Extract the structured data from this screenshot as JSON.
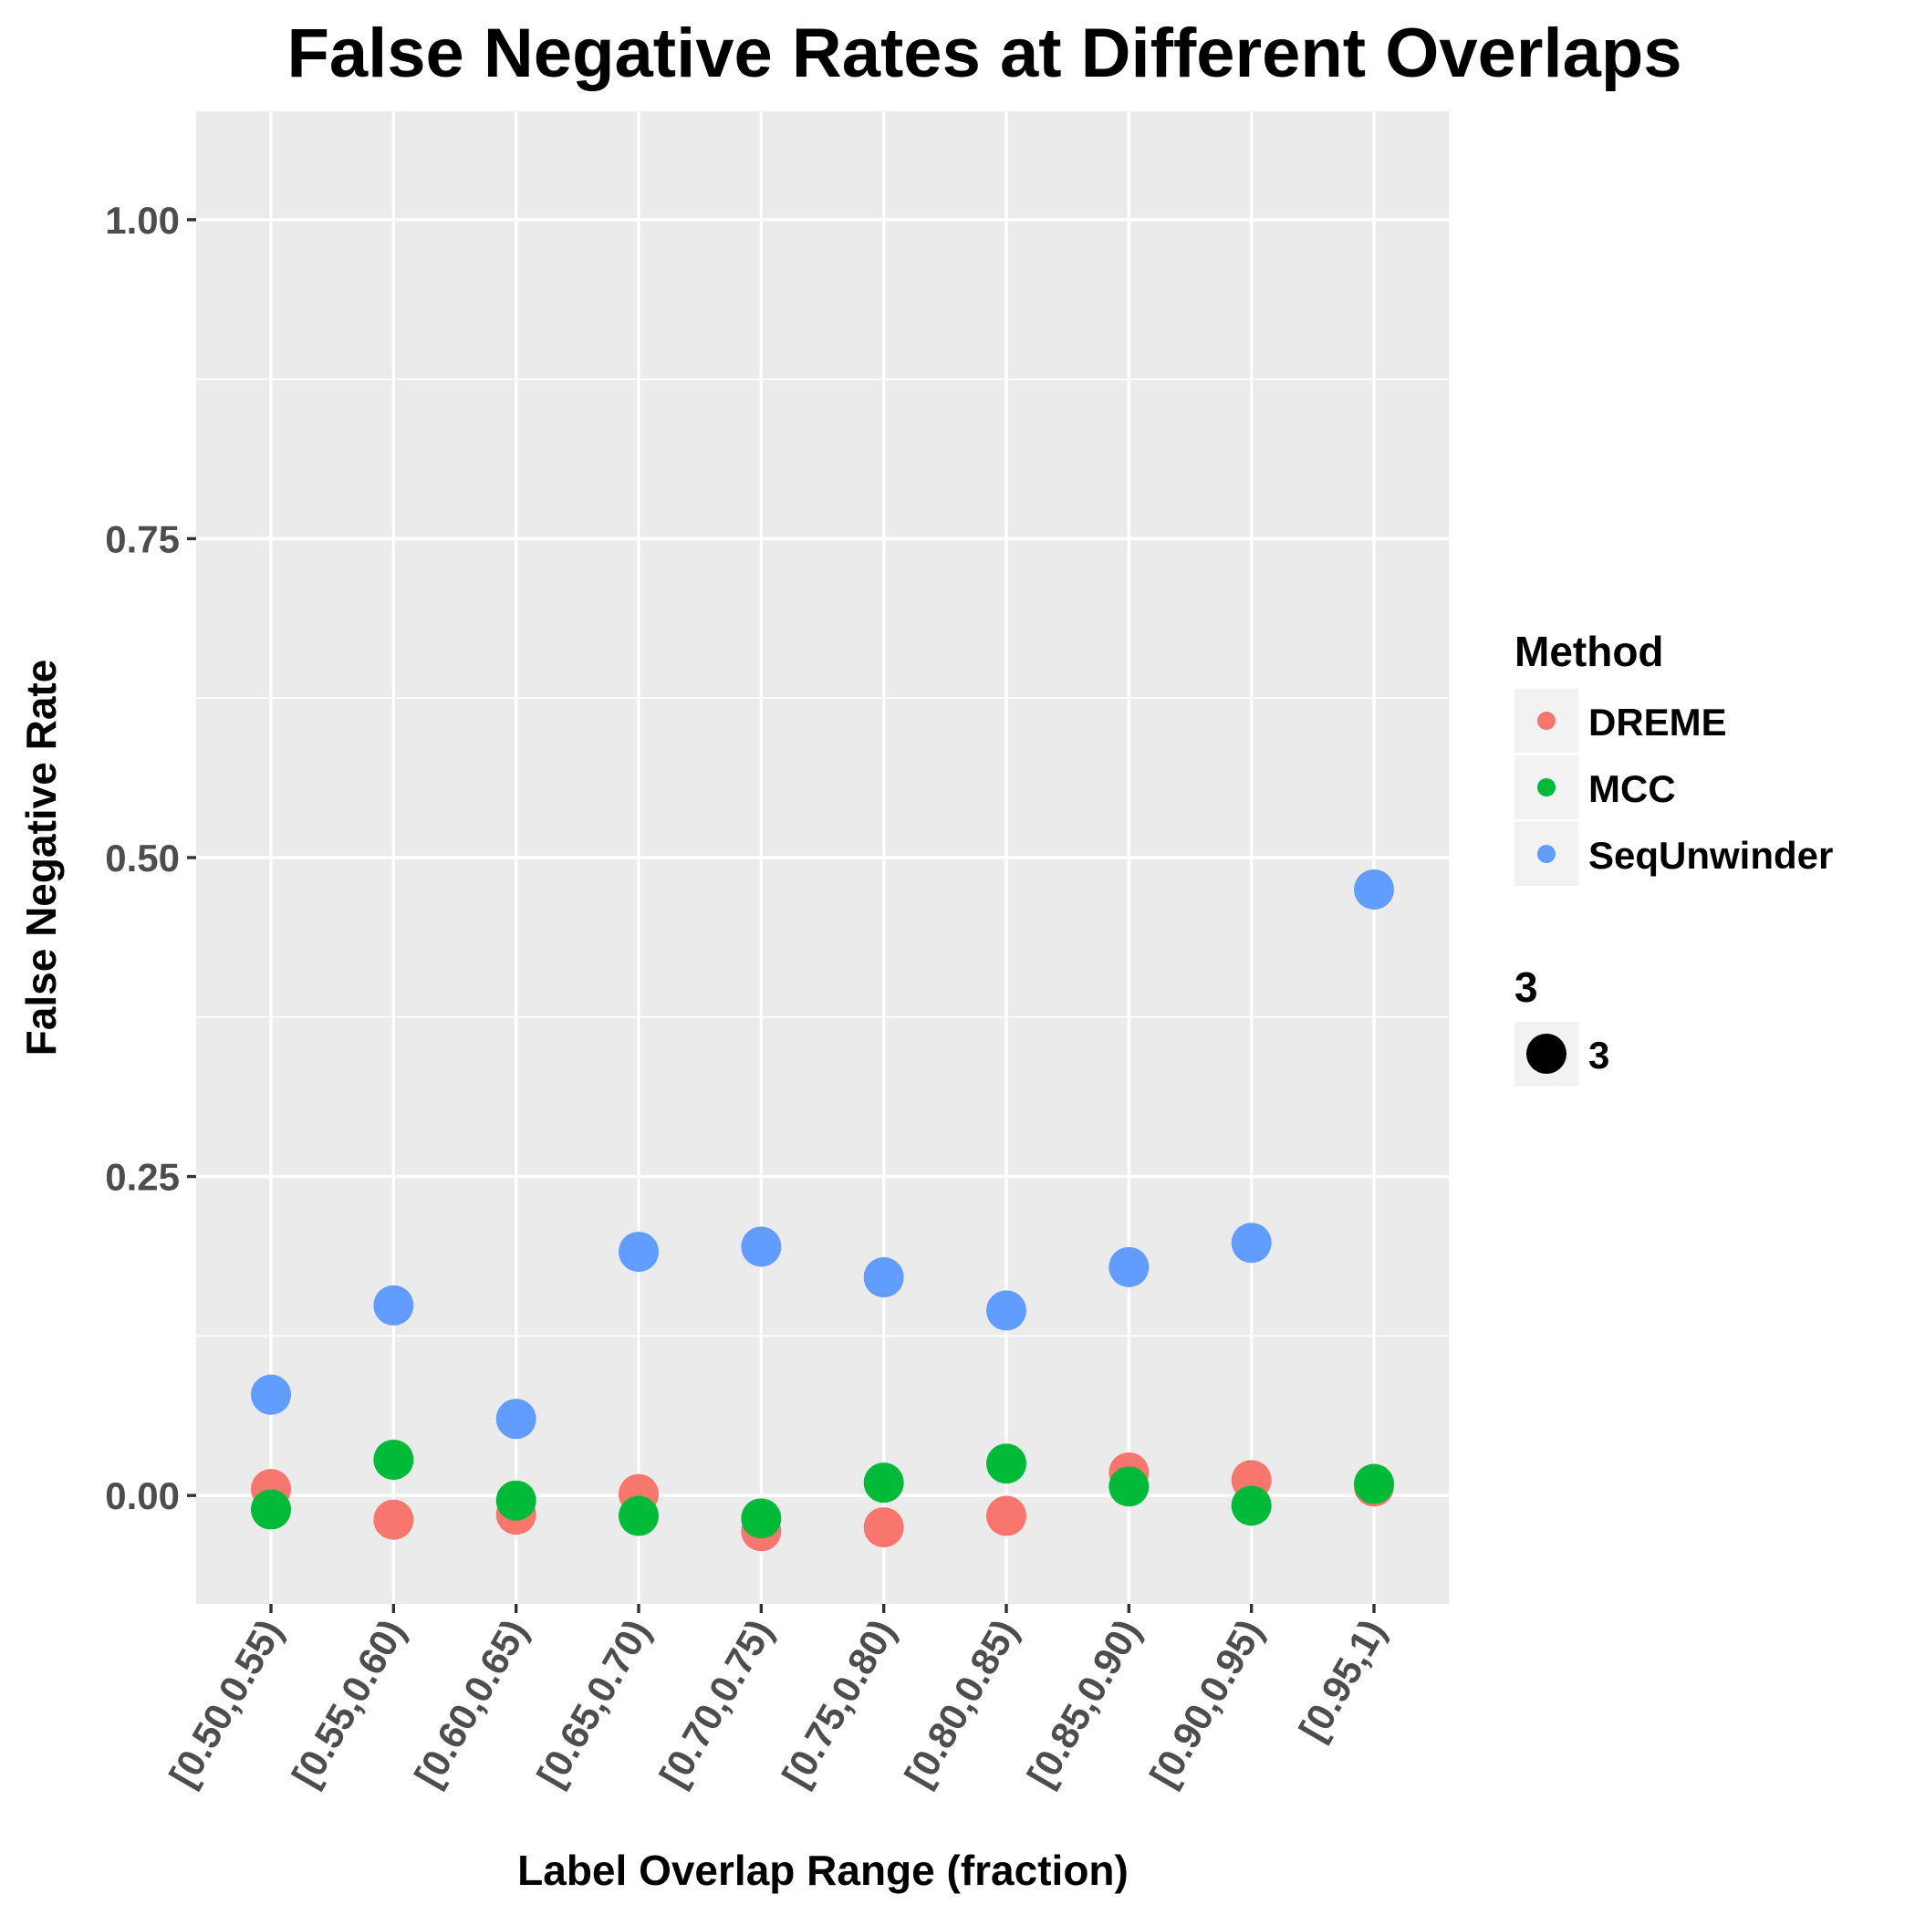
{
  "chart_data": {
    "type": "scatter",
    "title": "False Negative Rates at Different Overlaps",
    "xlabel": "Label Overlap Range (fraction)",
    "ylabel": "False Negative Rate",
    "categories": [
      "[0.50,0.55)",
      "[0.55,0.60)",
      "[0.60,0.65)",
      "[0.65,0.70)",
      "[0.70,0.75)",
      "[0.75,0.80)",
      "[0.80,0.85)",
      "[0.85,0.90)",
      "[0.90,0.95)",
      "[0.95,1)"
    ],
    "ylim": [
      -0.085,
      1.085
    ],
    "yticks": [
      0.0,
      0.25,
      0.5,
      0.75,
      1.0
    ],
    "ytick_labels": [
      "0.00",
      "0.25",
      "0.50",
      "0.75",
      "1.00"
    ],
    "grid": true,
    "legend_position": "right",
    "series": [
      {
        "name": "DREME",
        "color": "#F8766D",
        "values": [
          0.005,
          -0.019,
          -0.015,
          0.001,
          -0.028,
          -0.025,
          -0.016,
          0.018,
          0.012,
          0.007
        ]
      },
      {
        "name": "MCC",
        "color": "#00BA38",
        "values": [
          -0.011,
          0.028,
          -0.004,
          -0.016,
          -0.018,
          0.01,
          0.025,
          0.007,
          -0.008,
          0.009
        ]
      },
      {
        "name": "SeqUnwinder",
        "color": "#619CFF",
        "values": [
          0.079,
          0.149,
          0.06,
          0.191,
          0.195,
          0.171,
          0.145,
          0.179,
          0.198,
          0.475
        ]
      }
    ],
    "legend": {
      "color_title": "Method",
      "size_title": "3",
      "size_label": "3"
    }
  },
  "colors": {
    "panel_background": "#EBEBEB",
    "grid": "#FFFFFF",
    "tick": "#333333"
  }
}
